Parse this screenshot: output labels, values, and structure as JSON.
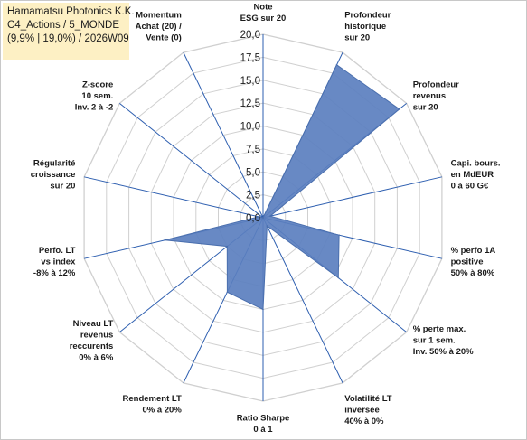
{
  "title_box": {
    "line1": "Hamamatsu Photonics K.K.",
    "line2": "C4_Actions / 5_MONDE",
    "line3": "(9,9% | 19,0%) / 2026W09"
  },
  "chart_data": {
    "type": "radar",
    "rmin": 0,
    "rmax": 20,
    "rticks": [
      "0,0",
      "2,5",
      "5,0",
      "7,5",
      "10,0",
      "12,5",
      "15,0",
      "17,5",
      "20,0"
    ],
    "grid": true,
    "fill_color": "#5b7fbf",
    "grid_color": "#d0d0d0",
    "axis_color": "#2e5fb0",
    "axes": [
      [
        "Note",
        "ESG sur 20"
      ],
      [
        "Profondeur",
        "historique",
        "sur 20"
      ],
      [
        "Profondeur",
        "revenus",
        "sur 20"
      ],
      [
        "Capi. bours.",
        "en MdEUR",
        "0 à 60 G€"
      ],
      [
        "% perfo 1A",
        "positive",
        "50% à 80%"
      ],
      [
        "% perte max.",
        "sur 1 sem.",
        "Inv. 50% à 20%"
      ],
      [
        "Volatilité LT",
        "inversée",
        "40% à 0%"
      ],
      [
        "Ratio Sharpe",
        "0 à 1"
      ],
      [
        "Rendement LT",
        "0% à 20%"
      ],
      [
        "Niveau LT",
        "revenus",
        "reccurents",
        "0% à 6%"
      ],
      [
        "Perfo. LT",
        "vs index",
        "-8% à 12%"
      ],
      [
        "Régularité",
        "croissance",
        "sur 20"
      ],
      [
        "Z-score",
        "10 sem.",
        "Inv. 2 à -2"
      ],
      [
        "Momentum",
        "Achat (20) /",
        "Vente (0)"
      ]
    ],
    "values": [
      0,
      18.5,
      19.0,
      0.8,
      8.5,
      10.5,
      1.0,
      10.0,
      9.0,
      5.0,
      11.0,
      0.5,
      0,
      0
    ]
  }
}
